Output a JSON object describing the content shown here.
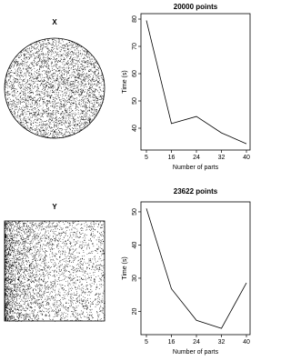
{
  "chart_data": [
    {
      "type": "points",
      "title": "X",
      "shape": "circle"
    },
    {
      "type": "line",
      "title": "20000 points",
      "x_label": "Number of parts",
      "y_label": "Time (s)",
      "color": "#000000",
      "categories": [
        5,
        16,
        24,
        32,
        40
      ],
      "values": [
        79.5,
        41.7,
        44.3,
        38.3,
        34.3
      ],
      "ylim": [
        32,
        82
      ],
      "yticks": [
        40,
        50,
        60,
        70,
        80
      ]
    },
    {
      "type": "points",
      "title": "Y",
      "shape": "square"
    },
    {
      "type": "line",
      "title": "23622 points",
      "x_label": "Number of parts",
      "y_label": "Time (s)",
      "color": "#000000",
      "categories": [
        5,
        16,
        24,
        32,
        40
      ],
      "values": [
        51,
        26.8,
        17.3,
        14.9,
        28.6
      ],
      "ylim": [
        13,
        53
      ],
      "yticks": [
        20,
        30,
        40,
        50
      ]
    }
  ]
}
